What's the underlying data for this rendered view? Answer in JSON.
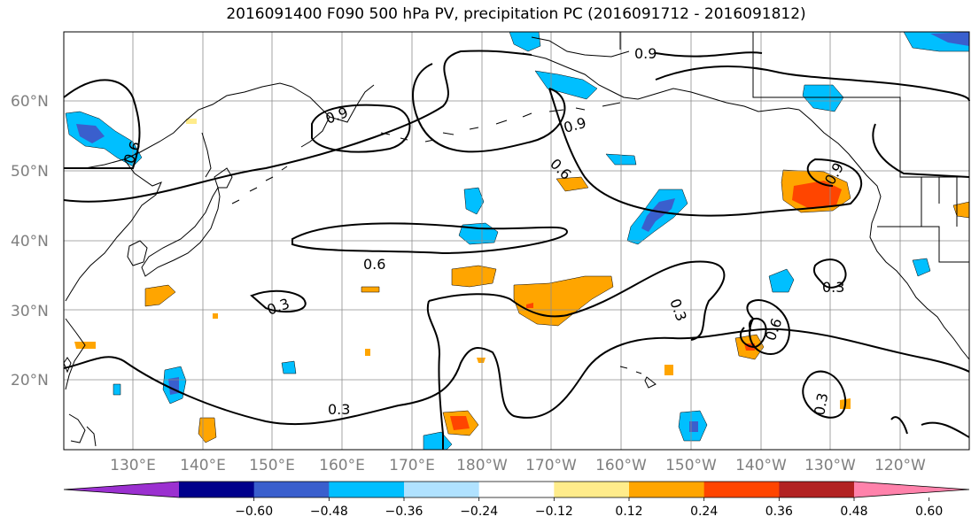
{
  "title": "2016091400 F090 500 hPa PV, precipitation PC (2016091712 - 2016091812)",
  "lat_labels": [
    "20°N",
    "30°N",
    "40°N",
    "50°N",
    "60°N"
  ],
  "lon_labels": [
    "130°E",
    "140°E",
    "150°E",
    "160°E",
    "170°E",
    "180°W",
    "170°W",
    "160°W",
    "150°W",
    "140°W",
    "130°W",
    "120°W"
  ],
  "contour_labels": [
    "0.9",
    "0.9",
    "0.9",
    "0.6",
    "0.6",
    "0.6",
    "0.3",
    "0.3",
    "0.3",
    "0.3",
    "0.3",
    "0.9",
    "0.6"
  ],
  "colorbar": {
    "tick_labels": [
      "−0.60",
      "−0.48",
      "−0.36",
      "−0.24",
      "−0.12",
      "0.12",
      "0.24",
      "0.36",
      "0.48",
      "0.60"
    ],
    "colors": [
      "#9b30d0",
      "#00008b",
      "#3a5fcd",
      "#00bfff",
      "#b0e2ff",
      "#ffffff",
      "#ffec8b",
      "#ffa500",
      "#ff4500",
      "#b22222",
      "#ff82ab"
    ]
  }
}
